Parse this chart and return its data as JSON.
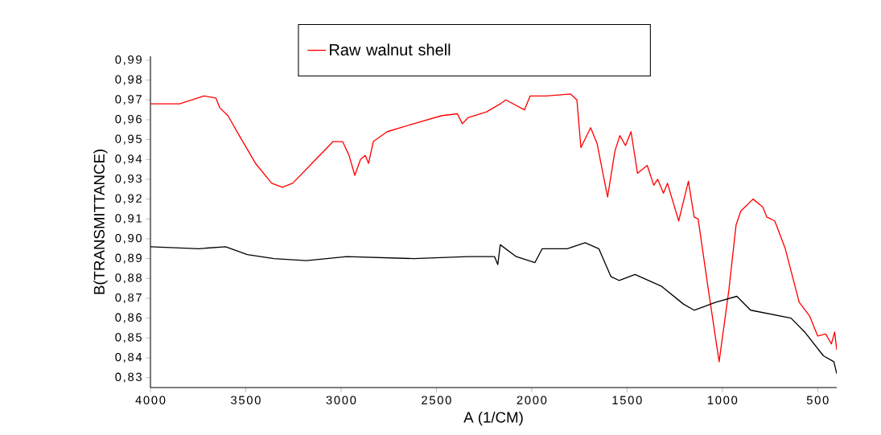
{
  "chart_data": {
    "type": "line",
    "xlabel": "A (1/CM)",
    "ylabel": "B(TRANSMITTANCE)",
    "xlim": [
      4000,
      400
    ],
    "ylim": [
      0.825,
      0.992
    ],
    "xticks": [
      4000,
      3500,
      3000,
      2500,
      2000,
      1500,
      1000,
      500
    ],
    "yticks": [
      {
        "value": 0.83,
        "label": "0,83"
      },
      {
        "value": 0.84,
        "label": "0,84"
      },
      {
        "value": 0.85,
        "label": "0,85"
      },
      {
        "value": 0.86,
        "label": "0,86"
      },
      {
        "value": 0.87,
        "label": "0,87"
      },
      {
        "value": 0.88,
        "label": "0,88"
      },
      {
        "value": 0.89,
        "label": "0,89"
      },
      {
        "value": 0.9,
        "label": "0,90"
      },
      {
        "value": 0.91,
        "label": "0,91"
      },
      {
        "value": 0.92,
        "label": "0,92"
      },
      {
        "value": 0.93,
        "label": "0,93"
      },
      {
        "value": 0.94,
        "label": "0,94"
      },
      {
        "value": 0.95,
        "label": "0,95"
      },
      {
        "value": 0.96,
        "label": "0,96"
      },
      {
        "value": 0.97,
        "label": "0,97"
      },
      {
        "value": 0.98,
        "label": "0,98"
      },
      {
        "value": 0.99,
        "label": "0,99"
      }
    ],
    "legend": "top",
    "grid": false,
    "marker": "none",
    "series": [
      {
        "name": "Raw walnut shell",
        "color": "#ff0000",
        "x": [
          4000,
          3847,
          3720,
          3657,
          3636,
          3593,
          3534,
          3449,
          3364,
          3309,
          3254,
          3153,
          3042,
          2992,
          2958,
          2928,
          2898,
          2873,
          2856,
          2831,
          2758,
          2619,
          2475,
          2390,
          2364,
          2335,
          2237,
          2165,
          2136,
          2038,
          2008,
          1924,
          1797,
          1763,
          1742,
          1691,
          1657,
          1602,
          1564,
          1538,
          1508,
          1479,
          1445,
          1394,
          1360,
          1339,
          1309,
          1288,
          1229,
          1178,
          1148,
          1127,
          1076,
          1017,
          966,
          928,
          903,
          839,
          788,
          767,
          725,
          670,
          597,
          542,
          500,
          458,
          428,
          411,
          400
        ],
        "values": [
          0.968,
          0.968,
          0.972,
          0.971,
          0.966,
          0.962,
          0.952,
          0.938,
          0.928,
          0.926,
          0.928,
          0.938,
          0.949,
          0.949,
          0.942,
          0.932,
          0.94,
          0.942,
          0.938,
          0.949,
          0.954,
          0.958,
          0.962,
          0.963,
          0.958,
          0.961,
          0.964,
          0.968,
          0.97,
          0.965,
          0.972,
          0.972,
          0.973,
          0.97,
          0.946,
          0.956,
          0.948,
          0.921,
          0.944,
          0.952,
          0.947,
          0.954,
          0.933,
          0.937,
          0.927,
          0.93,
          0.923,
          0.928,
          0.909,
          0.929,
          0.911,
          0.91,
          0.876,
          0.838,
          0.874,
          0.907,
          0.914,
          0.92,
          0.916,
          0.911,
          0.909,
          0.895,
          0.868,
          0.861,
          0.851,
          0.852,
          0.847,
          0.853,
          0.844
        ]
      },
      {
        "color": "#000000",
        "x": [
          4000,
          3746,
          3606,
          3492,
          3352,
          3182,
          2970,
          2619,
          2335,
          2195,
          2178,
          2165,
          2081,
          1983,
          1945,
          1814,
          1720,
          1648,
          1585,
          1542,
          1458,
          1318,
          1203,
          1148,
          1034,
          924,
          852,
          640,
          568,
          470,
          415,
          400
        ],
        "values": [
          0.896,
          0.895,
          0.896,
          0.892,
          0.89,
          0.889,
          0.891,
          0.89,
          0.891,
          0.891,
          0.887,
          0.897,
          0.891,
          0.888,
          0.895,
          0.895,
          0.898,
          0.895,
          0.881,
          0.879,
          0.882,
          0.876,
          0.867,
          0.864,
          0.868,
          0.871,
          0.864,
          0.86,
          0.853,
          0.841,
          0.838,
          0.832
        ]
      }
    ]
  }
}
